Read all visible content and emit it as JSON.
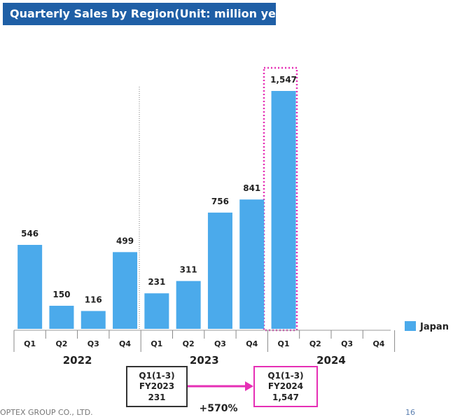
{
  "title": "Quarterly Sales by Region(Unit: million yen)",
  "chart_data": {
    "type": "bar",
    "title": "Quarterly Sales by Region(Unit: million yen)",
    "categories": [
      "Q1",
      "Q2",
      "Q3",
      "Q4",
      "Q1",
      "Q2",
      "Q3",
      "Q4",
      "Q1",
      "Q2",
      "Q3",
      "Q4"
    ],
    "years": [
      "2022",
      "2023",
      "2024"
    ],
    "series": [
      {
        "name": "Japan",
        "color": "#4baaeb",
        "values": [
          546,
          150,
          116,
          499,
          231,
          311,
          756,
          841,
          1547,
          null,
          null,
          null
        ],
        "labels": [
          "546",
          "150",
          "116",
          "499",
          "231",
          "311",
          "756",
          "841",
          "1,547",
          "",
          "",
          ""
        ]
      }
    ],
    "ylim": [
      0,
      1700
    ],
    "legend": "right",
    "highlight_index": 8
  },
  "comparison": {
    "left_box": {
      "line1": "Q1(1-3)",
      "line2": "FY2023",
      "line3": "231"
    },
    "right_box": {
      "line1": "Q1(1-3)",
      "line2": "FY2024",
      "line3": "1,547"
    },
    "change": "+570%"
  },
  "footer": {
    "company": "OPTEX GROUP CO., LTD.",
    "page": "16"
  }
}
